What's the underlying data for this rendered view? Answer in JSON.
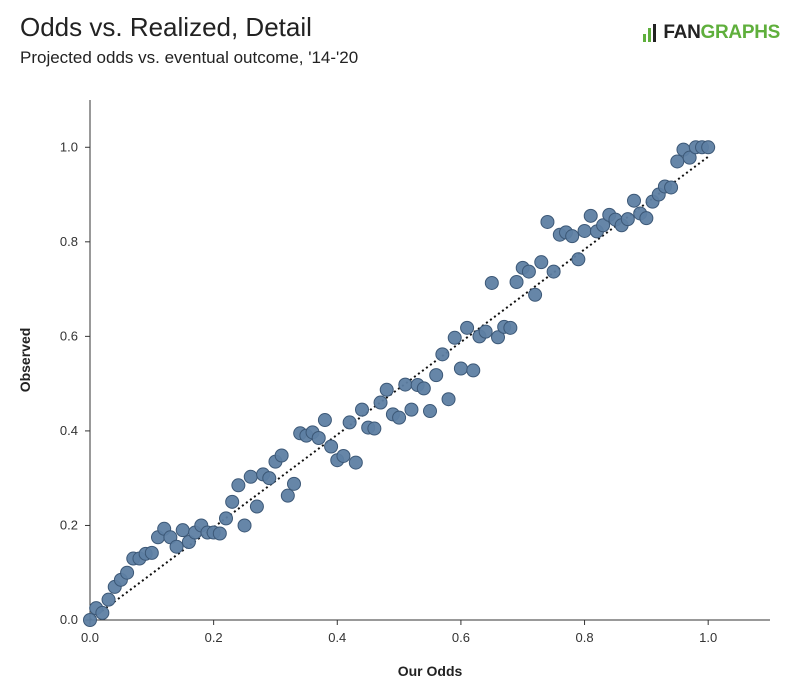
{
  "header": {
    "title": "Odds vs. Realized, Detail",
    "subtitle": "Projected odds vs. eventual outcome, '14-'20"
  },
  "logo": {
    "prefix": "FAN",
    "suffix": "GRAPHS",
    "icon": "fangraphs-bars-icon",
    "brand_color": "#5faf3c"
  },
  "colors": {
    "point_fill": "#5e7fa3",
    "point_stroke": "#3c5877",
    "trend": "#111111",
    "axis": "#333333"
  },
  "chart_data": {
    "type": "scatter",
    "title": "Odds vs. Realized, Detail",
    "subtitle": "Projected odds vs. eventual outcome, '14-'20",
    "xlabel": "Our Odds",
    "ylabel": "Observed",
    "xlim": [
      0,
      1.1
    ],
    "ylim": [
      0,
      1.1
    ],
    "xticks": [
      "0.0",
      "0.2",
      "0.4",
      "0.6",
      "0.8",
      "1.0"
    ],
    "yticks": [
      "0.0",
      "0.2",
      "0.4",
      "0.6",
      "0.8",
      "1.0"
    ],
    "grid": false,
    "trendline": {
      "style": "dotted",
      "x": [
        0.0,
        1.0
      ],
      "y": [
        0.0,
        0.98
      ]
    },
    "points": [
      [
        0.0,
        0.0
      ],
      [
        0.01,
        0.025
      ],
      [
        0.02,
        0.015
      ],
      [
        0.03,
        0.043
      ],
      [
        0.04,
        0.07
      ],
      [
        0.05,
        0.085
      ],
      [
        0.06,
        0.1
      ],
      [
        0.07,
        0.13
      ],
      [
        0.08,
        0.13
      ],
      [
        0.09,
        0.14
      ],
      [
        0.1,
        0.142
      ],
      [
        0.11,
        0.175
      ],
      [
        0.12,
        0.193
      ],
      [
        0.13,
        0.175
      ],
      [
        0.14,
        0.155
      ],
      [
        0.15,
        0.19
      ],
      [
        0.16,
        0.165
      ],
      [
        0.17,
        0.185
      ],
      [
        0.18,
        0.2
      ],
      [
        0.19,
        0.185
      ],
      [
        0.2,
        0.185
      ],
      [
        0.21,
        0.183
      ],
      [
        0.22,
        0.215
      ],
      [
        0.23,
        0.25
      ],
      [
        0.24,
        0.285
      ],
      [
        0.25,
        0.2
      ],
      [
        0.26,
        0.303
      ],
      [
        0.27,
        0.24
      ],
      [
        0.28,
        0.308
      ],
      [
        0.29,
        0.3
      ],
      [
        0.3,
        0.335
      ],
      [
        0.31,
        0.348
      ],
      [
        0.32,
        0.263
      ],
      [
        0.33,
        0.288
      ],
      [
        0.34,
        0.395
      ],
      [
        0.35,
        0.39
      ],
      [
        0.36,
        0.397
      ],
      [
        0.37,
        0.385
      ],
      [
        0.38,
        0.423
      ],
      [
        0.39,
        0.367
      ],
      [
        0.4,
        0.338
      ],
      [
        0.41,
        0.347
      ],
      [
        0.42,
        0.418
      ],
      [
        0.43,
        0.333
      ],
      [
        0.44,
        0.445
      ],
      [
        0.45,
        0.407
      ],
      [
        0.46,
        0.405
      ],
      [
        0.47,
        0.46
      ],
      [
        0.48,
        0.487
      ],
      [
        0.49,
        0.435
      ],
      [
        0.5,
        0.428
      ],
      [
        0.51,
        0.498
      ],
      [
        0.52,
        0.445
      ],
      [
        0.53,
        0.497
      ],
      [
        0.54,
        0.49
      ],
      [
        0.55,
        0.442
      ],
      [
        0.56,
        0.518
      ],
      [
        0.57,
        0.562
      ],
      [
        0.58,
        0.467
      ],
      [
        0.59,
        0.597
      ],
      [
        0.6,
        0.532
      ],
      [
        0.61,
        0.618
      ],
      [
        0.62,
        0.528
      ],
      [
        0.63,
        0.6
      ],
      [
        0.64,
        0.61
      ],
      [
        0.65,
        0.713
      ],
      [
        0.66,
        0.598
      ],
      [
        0.67,
        0.62
      ],
      [
        0.68,
        0.618
      ],
      [
        0.69,
        0.715
      ],
      [
        0.7,
        0.745
      ],
      [
        0.71,
        0.737
      ],
      [
        0.72,
        0.688
      ],
      [
        0.73,
        0.757
      ],
      [
        0.74,
        0.842
      ],
      [
        0.75,
        0.737
      ],
      [
        0.76,
        0.815
      ],
      [
        0.77,
        0.82
      ],
      [
        0.78,
        0.812
      ],
      [
        0.79,
        0.763
      ],
      [
        0.8,
        0.823
      ],
      [
        0.81,
        0.855
      ],
      [
        0.82,
        0.822
      ],
      [
        0.83,
        0.835
      ],
      [
        0.84,
        0.857
      ],
      [
        0.85,
        0.847
      ],
      [
        0.86,
        0.835
      ],
      [
        0.87,
        0.848
      ],
      [
        0.88,
        0.887
      ],
      [
        0.89,
        0.86
      ],
      [
        0.9,
        0.85
      ],
      [
        0.91,
        0.885
      ],
      [
        0.92,
        0.9
      ],
      [
        0.93,
        0.917
      ],
      [
        0.94,
        0.915
      ],
      [
        0.95,
        0.97
      ],
      [
        0.96,
        0.995
      ],
      [
        0.97,
        0.978
      ],
      [
        0.98,
        1.0
      ],
      [
        0.99,
        1.0
      ],
      [
        1.0,
        1.0
      ]
    ]
  }
}
